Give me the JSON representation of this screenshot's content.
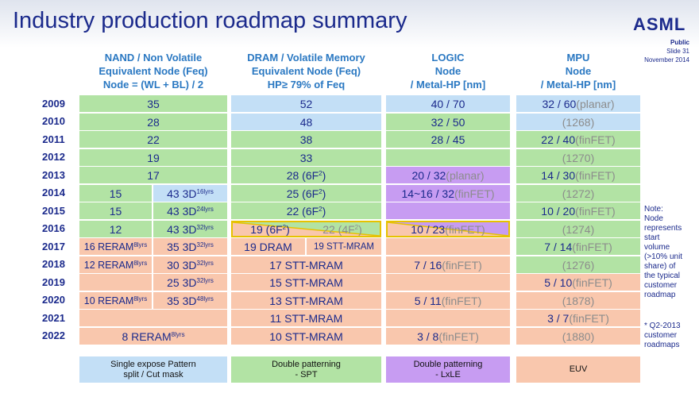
{
  "header": {
    "title": "Industry production roadmap summary",
    "logo": "ASML",
    "classification": "Public",
    "slide": "Slide 31",
    "date": "November 2014"
  },
  "columns": {
    "nand": {
      "line1": "NAND / Non Volatile",
      "line2": "Equivalent Node (Feq)",
      "line3": "Node = (WL + BL) / 2"
    },
    "dram": {
      "line1": "DRAM / Volatile Memory",
      "line2": "Equivalent Node (Feq)",
      "line3": "HP≥ 79% of Feq"
    },
    "logic": {
      "line1": "LOGIC",
      "line2": "Node",
      "line3": "/ Metal-HP [nm]"
    },
    "mpu": {
      "line1": "MPU",
      "line2": "Node",
      "line3": "/ Metal-HP [nm]"
    }
  },
  "years": [
    "2009",
    "2010",
    "2011",
    "2012",
    "2013",
    "2014",
    "2015",
    "2016",
    "2017",
    "2018",
    "2019",
    "2020",
    "2021",
    "2022"
  ],
  "nand": {
    "full": [
      "35",
      "28",
      "22",
      "19",
      "17"
    ],
    "left": {
      "r2014": "15",
      "r2015": "15",
      "r2016": "12",
      "r2017": "16 RERAM",
      "r2018": "12 RERAM",
      "r2020": "10 RERAM"
    },
    "left_sup": {
      "r2017": "8lyrs",
      "r2018": "8lyrs",
      "r2020": "8lyrs"
    },
    "right": {
      "r2014": "43 3D",
      "r2015": "43 3D",
      "r2016": "43 3D",
      "r2017": "35 3D",
      "r2018": "30 3D",
      "r2019": "25 3D",
      "r2020": "35 3D"
    },
    "right_sup": {
      "r2014": "16lyrs",
      "r2015": "24lyrs",
      "r2016": "32lyrs",
      "r2017": "32lyrs",
      "r2018": "32lyrs",
      "r2019": "32lyrs",
      "r2020": "48lyrs"
    },
    "r2022": "8 RERAM",
    "r2022_sup": "8lyrs"
  },
  "dram": {
    "r2009": "52",
    "r2010": "48",
    "r2011": "38",
    "r2012": "33",
    "r2013": "28 (6F",
    "r2014": "25 (6F",
    "r2015": "22 (6F",
    "sq": "2",
    "close": ")",
    "r2016_left": "19 (6F",
    "r2016_right": "22 (4F",
    "r2017_left": "19 DRAM",
    "r2017_right": "19 STT-MRAM",
    "r2018": "17 STT-MRAM",
    "r2019": "15 STT-MRAM",
    "r2020": "13 STT-MRAM",
    "r2021": "11 STT-MRAM",
    "r2022": "10 STT-MRAM"
  },
  "logic": {
    "r2009": "40 / 70",
    "r2010": "32 / 50",
    "r2011": "28 / 45",
    "r2013_a": "20 / 32 ",
    "r2013_b": "(planar)",
    "r2014_a": "14~16 / 32 ",
    "r2014_b": "(finFET)",
    "r2016_a": "10 / 23 ",
    "r2016_b": "(finFET)",
    "r2018_a": "7 /  16 ",
    "r2018_b": "(finFET)",
    "r2020_a": "5 / 11 ",
    "r2020_b": "(finFET)",
    "r2022_a": "3 / 8 ",
    "r2022_b": "(finFET)"
  },
  "mpu": {
    "r2009_a": "32 / 60 ",
    "r2009_b": "(planar)",
    "r2010": "(1268)",
    "r2011_a": "22 / 40 ",
    "r2011_b": "(finFET)",
    "r2012": "(1270)",
    "r2013_a": "14 / 30 ",
    "r2013_b": "(finFET)",
    "r2014": "(1272)",
    "r2015_a": "10 / 20 ",
    "r2015_b": "(finFET)",
    "r2016": "(1274)",
    "r2017_a": "7 / 14 ",
    "r2017_b": "(finFET)",
    "r2018": "(1276)",
    "r2019_a": "5 / 10 ",
    "r2019_b": "(finFET)",
    "r2020": "(1878)",
    "r2021_a": "3 / 7 ",
    "r2021_b": "(finFET)",
    "r2022": "(1880)"
  },
  "footer": {
    "nand": [
      "Single expose Pattern",
      "split / Cut mask"
    ],
    "dram": [
      "Double patterning",
      "- SPT"
    ],
    "logic": [
      "Double patterning",
      "- LxLE"
    ],
    "mpu": [
      "EUV"
    ]
  },
  "notes": {
    "main": [
      "Note:",
      "Node",
      "represents",
      "start",
      "volume",
      "(>10% unit",
      "share) of",
      "the typical",
      "customer",
      "roadmap"
    ],
    "q2": [
      "* Q2-2013",
      "customer",
      "roadmaps"
    ]
  },
  "colors": {
    "green": "#b2e3a4",
    "blue": "#c3dff6",
    "peach": "#f9c7ad",
    "violet": "#c79cf2",
    "navy": "#1b2a8c",
    "header_blue": "#2a78c2"
  }
}
